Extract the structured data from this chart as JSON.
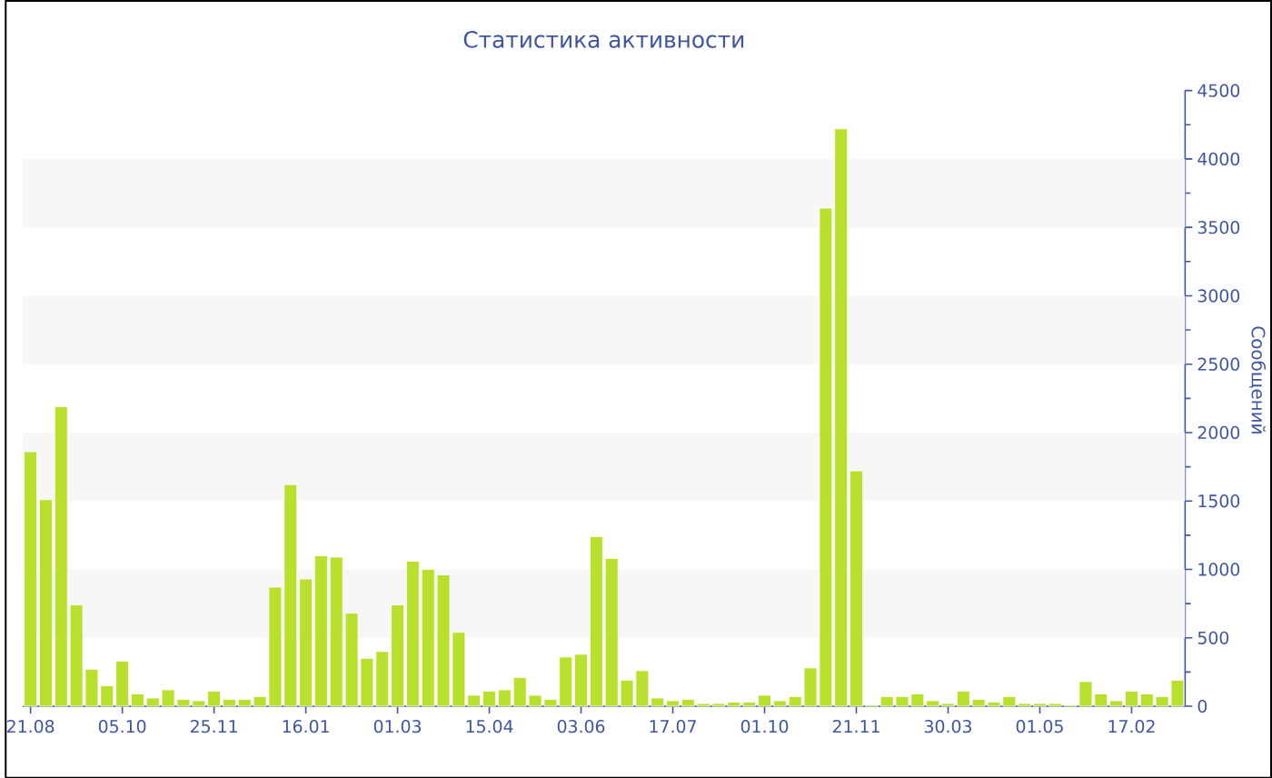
{
  "chart_data": {
    "type": "bar",
    "title": "Статистика активности",
    "ylabel": "Сообщений",
    "categories": [
      "21.08",
      null,
      null,
      null,
      null,
      null,
      "05.10",
      null,
      null,
      null,
      null,
      null,
      "25.11",
      null,
      null,
      null,
      null,
      null,
      "16.01",
      null,
      null,
      null,
      null,
      null,
      "01.03",
      null,
      null,
      null,
      null,
      null,
      "15.04",
      null,
      null,
      null,
      null,
      null,
      "03.06",
      null,
      null,
      null,
      null,
      null,
      "17.07",
      null,
      null,
      null,
      null,
      null,
      "01.10",
      null,
      null,
      null,
      null,
      null,
      "21.11",
      null,
      null,
      null,
      null,
      null,
      "30.03",
      null,
      null,
      null,
      null,
      null,
      "01.05",
      null,
      null,
      null,
      null,
      null,
      "17.02",
      null,
      null,
      null
    ],
    "values": [
      1860,
      1510,
      2190,
      740,
      270,
      150,
      330,
      90,
      60,
      120,
      50,
      40,
      110,
      50,
      50,
      70,
      870,
      1620,
      930,
      1100,
      1090,
      680,
      350,
      400,
      740,
      1060,
      1000,
      960,
      540,
      80,
      110,
      120,
      210,
      80,
      50,
      360,
      380,
      1240,
      1080,
      190,
      260,
      60,
      40,
      50,
      20,
      20,
      30,
      30,
      80,
      40,
      70,
      280,
      3640,
      4220,
      1720,
      10,
      70,
      70,
      90,
      40,
      20,
      110,
      50,
      30,
      70,
      20,
      20,
      20,
      10,
      180,
      90,
      40,
      110,
      90,
      70,
      190
    ],
    "color": "#b8e02c",
    "ylim": [
      0,
      4500
    ],
    "yticks": [
      0,
      500,
      1000,
      1500,
      2000,
      2500,
      3000,
      3500,
      4000,
      4500
    ],
    "bands": [
      {
        "axis": "y",
        "from": 500,
        "to": 1000,
        "color": "#f7f7f7"
      },
      {
        "axis": "y",
        "from": 1500,
        "to": 2000,
        "color": "#f7f7f7"
      },
      {
        "axis": "y",
        "from": 2500,
        "to": 3000,
        "color": "#f7f7f7"
      },
      {
        "axis": "y",
        "from": 3500,
        "to": 4000,
        "color": "#f7f7f7"
      }
    ]
  }
}
